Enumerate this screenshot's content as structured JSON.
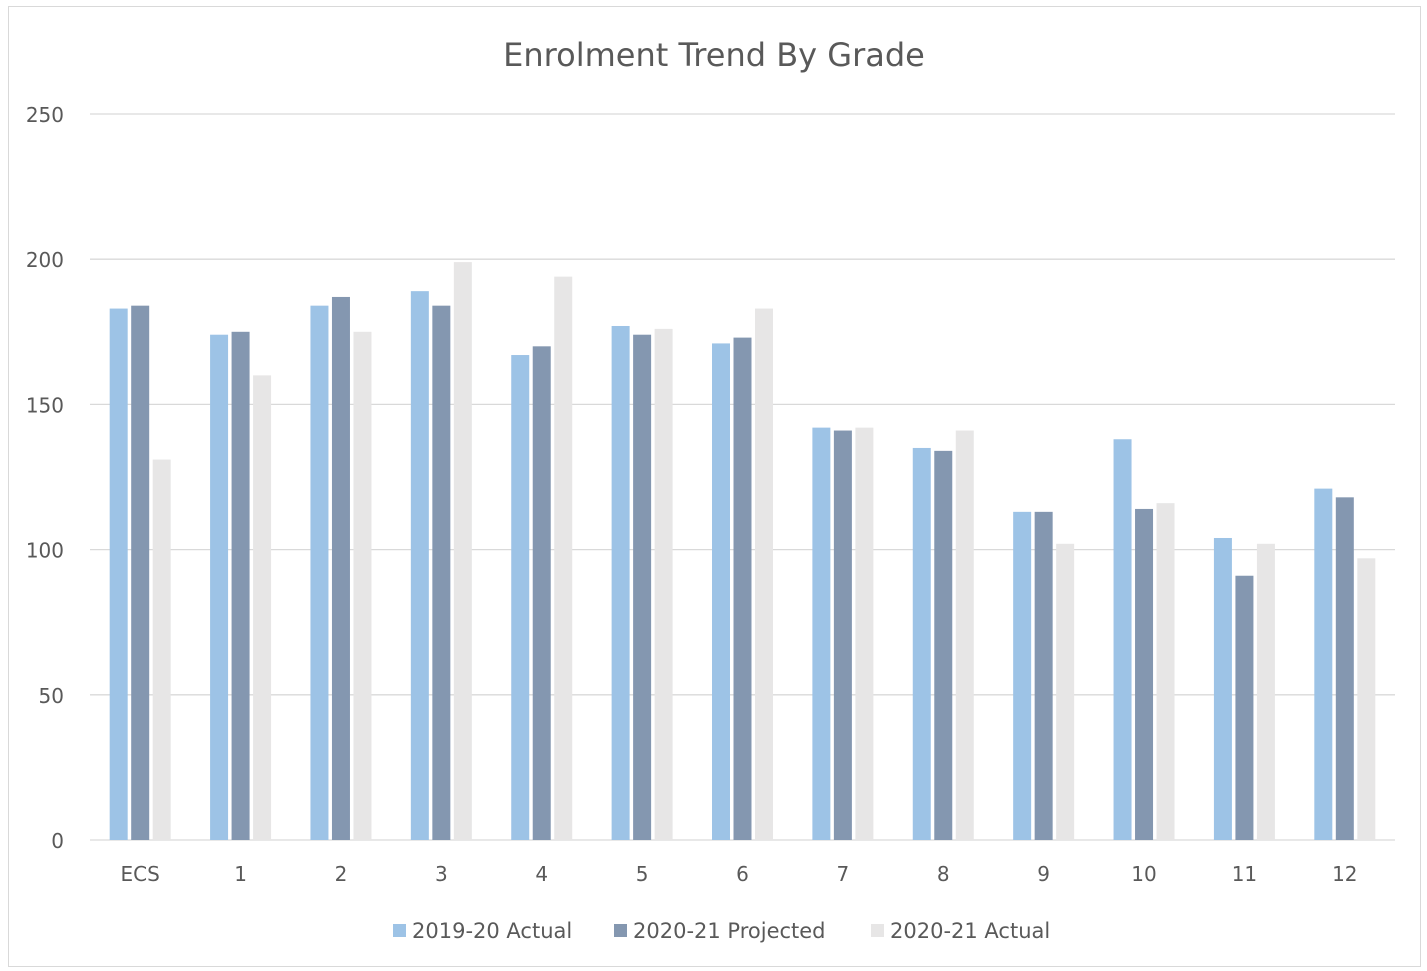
{
  "chart_data": {
    "type": "bar",
    "title": "Enrolment Trend By Grade",
    "xlabel": "",
    "ylabel": "",
    "ylim": [
      0,
      250
    ],
    "yticks": [
      0,
      50,
      100,
      150,
      200,
      250
    ],
    "grid": true,
    "legend_position": "bottom",
    "categories": [
      "ECS",
      "1",
      "2",
      "3",
      "4",
      "5",
      "6",
      "7",
      "8",
      "9",
      "10",
      "11",
      "12"
    ],
    "series": [
      {
        "name": "2019-20 Actual",
        "color": "#9dc3e6",
        "values": [
          183,
          174,
          184,
          189,
          167,
          177,
          171,
          142,
          135,
          113,
          138,
          104,
          121
        ]
      },
      {
        "name": "2020-21 Projected",
        "color": "#8497b0",
        "values": [
          184,
          175,
          187,
          184,
          170,
          174,
          173,
          141,
          134,
          113,
          114,
          91,
          118
        ]
      },
      {
        "name": "2020-21 Actual",
        "color": "#e7e6e6",
        "values": [
          131,
          160,
          175,
          199,
          194,
          176,
          183,
          142,
          141,
          102,
          116,
          102,
          97
        ]
      }
    ]
  },
  "colors": {
    "gridline": "#d9d9d9",
    "axis_text": "#595959",
    "title_text": "#595959"
  }
}
